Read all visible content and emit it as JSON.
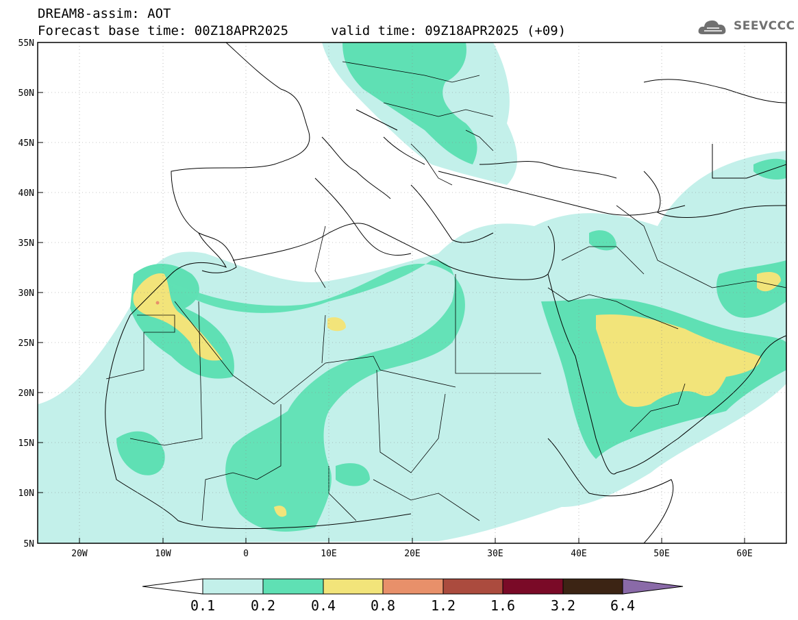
{
  "title": {
    "line1": "DREAM8-assim: AOT",
    "base_time": "Forecast base time: 00Z18APR2025",
    "valid_time": "valid time: 09Z18APR2025 (+09)"
  },
  "logo": {
    "text": "SEEVCCC",
    "icon": "cloud-icon"
  },
  "map": {
    "lon_range": [
      -25,
      65
    ],
    "lat_range": [
      5,
      55
    ],
    "lat_labels": [
      "55N",
      "50N",
      "45N",
      "40N",
      "35N",
      "30N",
      "25N",
      "20N",
      "15N",
      "10N",
      "5N"
    ],
    "lon_labels": [
      "20W",
      "10W",
      "0",
      "10E",
      "20E",
      "30E",
      "40E",
      "50E",
      "60E"
    ],
    "gridlines": "dotted"
  },
  "colorbar": {
    "labels": [
      "0.1",
      "0.2",
      "0.4",
      "0.8",
      "1.2",
      "1.6",
      "3.2",
      "6.4"
    ],
    "colors": [
      "#ffffff",
      "#c3f0ea",
      "#5fe0b4",
      "#f2e47a",
      "#e8906a",
      "#ab4b3e",
      "#7a0a27",
      "#3c2414",
      "#8a6aa8"
    ]
  }
}
